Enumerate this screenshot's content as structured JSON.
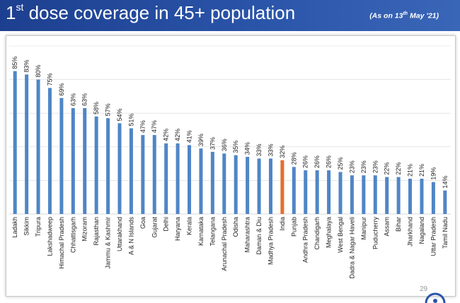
{
  "header": {
    "title_prefix": "1",
    "title_sup": "st",
    "title_rest": " dose coverage in 45+ population",
    "asof_prefix": "(As on 13",
    "asof_sup": "th",
    "asof_rest": " May '21)"
  },
  "slide_number": "29",
  "logo_icon": "pib-logo-icon",
  "colors": {
    "header_bg": "#2a54a8",
    "bar": "#4f86c6",
    "highlight_bar": "#e36f2c",
    "gridline": "#d9d9d9"
  },
  "chart_data": {
    "type": "bar",
    "title": "",
    "xlabel": "",
    "ylabel": "",
    "ylim": [
      0,
      100
    ],
    "grid": true,
    "highlight_category": "India",
    "categories": [
      "Ladakh",
      "Sikkim",
      "Tripura",
      "Lakshadweep",
      "Himachal Pradesh",
      "Chhattisgarh",
      "Mizoram",
      "Rajasthan",
      "Jammu & Kashmir",
      "Uttarakhand",
      "A & N Islands",
      "Goa",
      "Gujarat",
      "Delhi",
      "Haryana",
      "Kerala",
      "Karnataka",
      "Telangana",
      "Arunachal Pradesh",
      "Odisha",
      "Maharashtra",
      "Daman & Diu",
      "Madhya Pradesh",
      "India",
      "Punjab",
      "Andhra Pradesh",
      "Chandigarh",
      "Meghalaya",
      "West Bengal",
      "Dadra & Nagar Haveli",
      "Manipur",
      "Puducherry",
      "Assam",
      "Bihar",
      "Jharkhand",
      "Nagaland",
      "Uttar Pradesh",
      "Tamil Nadu"
    ],
    "values": [
      85,
      83,
      80,
      75,
      69,
      63,
      63,
      58,
      57,
      54,
      51,
      47,
      47,
      42,
      42,
      41,
      39,
      37,
      36,
      35,
      34,
      33,
      33,
      32,
      28,
      26,
      26,
      26,
      25,
      23,
      23,
      23,
      22,
      22,
      21,
      21,
      19,
      14
    ],
    "value_suffix": "%"
  }
}
